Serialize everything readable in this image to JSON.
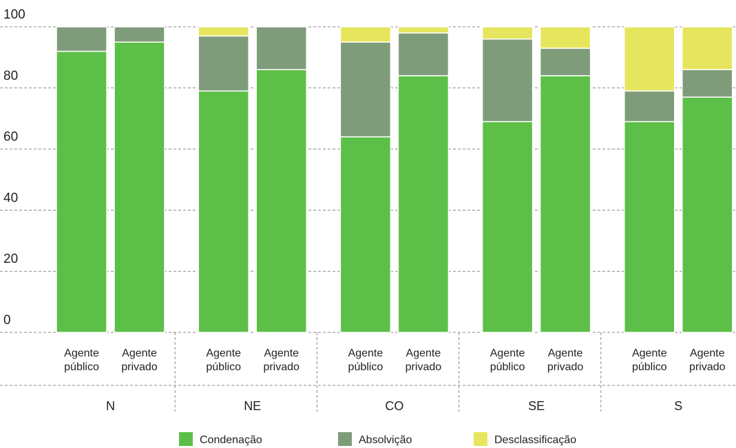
{
  "chart_data": {
    "type": "stacked_bar",
    "groups": [
      "N",
      "NE",
      "CO",
      "SE",
      "S"
    ],
    "categories": [
      "Agente público",
      "Agente privado",
      "Agente público",
      "Agente privado",
      "Agente público",
      "Agente privado",
      "Agente público",
      "Agente privado",
      "Agente público",
      "Agente privado"
    ],
    "series": [
      {
        "name": "Condenação",
        "color": "#5cbf48",
        "values": [
          92,
          95,
          79,
          86,
          64,
          84,
          69,
          84,
          69,
          77
        ]
      },
      {
        "name": "Absolvição",
        "color": "#7f9c7a",
        "values": [
          8,
          5,
          18,
          14,
          31,
          14,
          27,
          9,
          10,
          9
        ]
      },
      {
        "name": "Desclassificação",
        "color": "#e6e55e",
        "values": [
          0,
          0,
          3,
          0,
          5,
          2,
          4,
          7,
          21,
          14
        ]
      }
    ],
    "ylim": [
      0,
      100
    ],
    "yticks": [
      0,
      20,
      40,
      60,
      80,
      100
    ],
    "grid": true
  }
}
